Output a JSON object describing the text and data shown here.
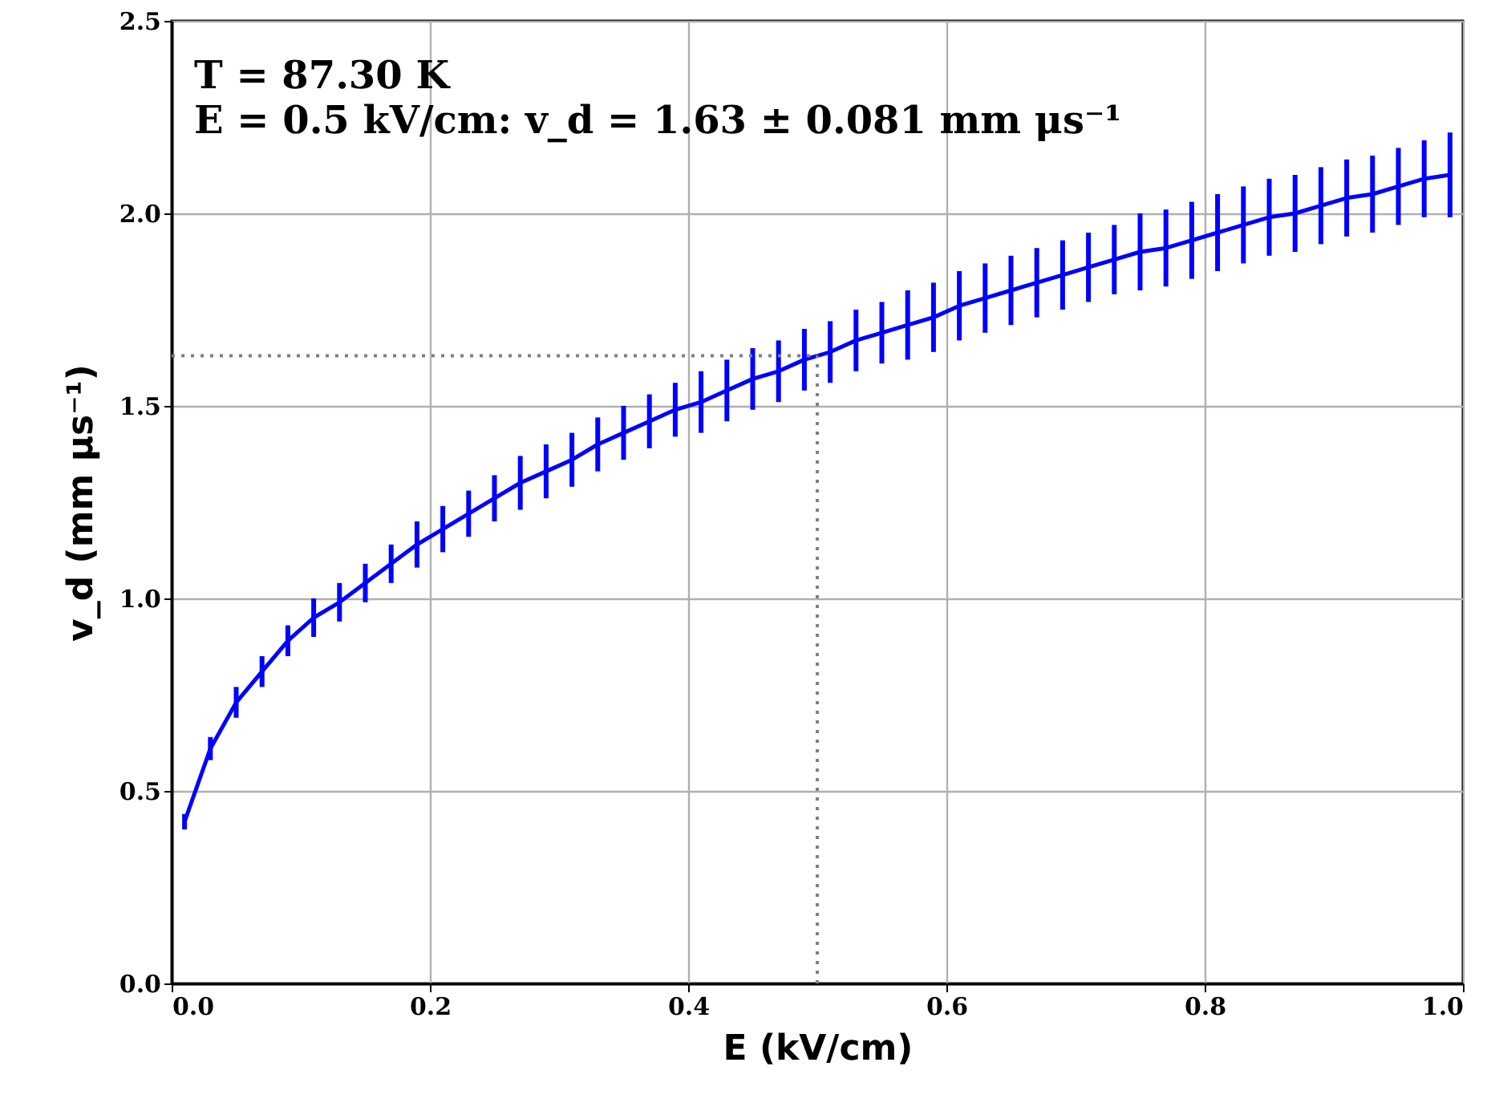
{
  "chart_data": {
    "type": "line",
    "xlabel": "E (kV/cm)",
    "ylabel": "v_d (mm μs⁻¹)",
    "annotations": [
      "T = 87.30 K",
      "E = 0.5 kV/cm:  v_d = 1.63 ± 0.081 mm μs⁻¹"
    ],
    "x": [
      0.01,
      0.03,
      0.05,
      0.07,
      0.09,
      0.11,
      0.13,
      0.15,
      0.17,
      0.19,
      0.21,
      0.23,
      0.25,
      0.27,
      0.29,
      0.31,
      0.33,
      0.35,
      0.37,
      0.39,
      0.41,
      0.43,
      0.45,
      0.47,
      0.49,
      0.51,
      0.53,
      0.55,
      0.57,
      0.59,
      0.61,
      0.63,
      0.65,
      0.67,
      0.69,
      0.71,
      0.73,
      0.75,
      0.77,
      0.79,
      0.81,
      0.83,
      0.85,
      0.87,
      0.89,
      0.91,
      0.93,
      0.95,
      0.97,
      0.99
    ],
    "series": [
      {
        "color": "#0000ff",
        "values": [
          0.42,
          0.61,
          0.73,
          0.81,
          0.89,
          0.95,
          0.99,
          1.04,
          1.09,
          1.14,
          1.18,
          1.22,
          1.26,
          1.3,
          1.33,
          1.36,
          1.4,
          1.43,
          1.46,
          1.49,
          1.51,
          1.54,
          1.57,
          1.59,
          1.62,
          1.64,
          1.67,
          1.69,
          1.71,
          1.73,
          1.76,
          1.78,
          1.8,
          1.82,
          1.84,
          1.86,
          1.88,
          1.9,
          1.91,
          1.93,
          1.95,
          1.97,
          1.99,
          2.0,
          2.02,
          2.04,
          2.05,
          2.07,
          2.09,
          2.1
        ],
        "errors": [
          0.02,
          0.03,
          0.04,
          0.04,
          0.04,
          0.05,
          0.05,
          0.05,
          0.05,
          0.06,
          0.06,
          0.06,
          0.06,
          0.07,
          0.07,
          0.07,
          0.07,
          0.07,
          0.07,
          0.07,
          0.08,
          0.08,
          0.08,
          0.08,
          0.08,
          0.08,
          0.08,
          0.08,
          0.09,
          0.09,
          0.09,
          0.09,
          0.09,
          0.09,
          0.09,
          0.09,
          0.09,
          0.1,
          0.1,
          0.1,
          0.1,
          0.1,
          0.1,
          0.1,
          0.1,
          0.1,
          0.1,
          0.1,
          0.1,
          0.11
        ]
      }
    ],
    "xlim": [
      0,
      1
    ],
    "ylim": [
      0,
      2.5
    ],
    "xticks": [
      {
        "value": 0,
        "label": "0.0"
      },
      {
        "value": 0.2,
        "label": "0.2"
      },
      {
        "value": 0.4,
        "label": "0.4"
      },
      {
        "value": 0.6,
        "label": "0.6"
      },
      {
        "value": 0.8,
        "label": "0.8"
      },
      {
        "value": 1,
        "label": "1.0"
      }
    ],
    "yticks": [
      {
        "value": 0,
        "label": "0.0"
      },
      {
        "value": 0.5,
        "label": "0.5"
      },
      {
        "value": 1,
        "label": "1.0"
      },
      {
        "value": 1.5,
        "label": "1.5"
      },
      {
        "value": 2,
        "label": "2.0"
      },
      {
        "value": 2.5,
        "label": "2.5"
      }
    ],
    "ref_lines": [
      {
        "axis": "y",
        "value": 1.63,
        "color": "#808080",
        "line_style": "dotted"
      },
      {
        "axis": "x",
        "value": 0.5,
        "color": "#808080",
        "line_style": "dotted"
      }
    ],
    "grid": true,
    "marker": "none",
    "line_style": "solid"
  }
}
